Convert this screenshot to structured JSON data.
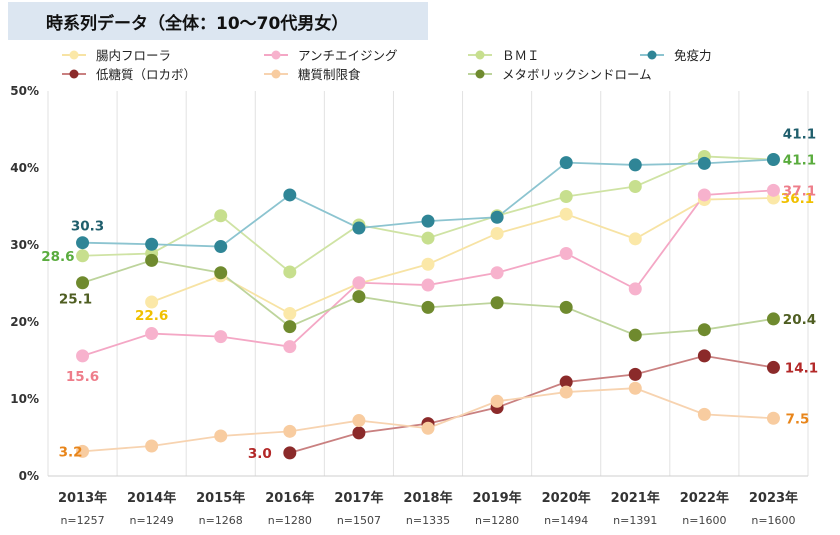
{
  "chart_data": {
    "type": "line",
    "title": "時系列データ（全体：10～70代男女）",
    "categories": [
      "2013年",
      "2014年",
      "2015年",
      "2016年",
      "2017年",
      "2018年",
      "2019年",
      "2020年",
      "2021年",
      "2022年",
      "2023年"
    ],
    "sample_sizes": [
      "n=1257",
      "n=1249",
      "n=1268",
      "n=1280",
      "n=1507",
      "n=1335",
      "n=1280",
      "n=1494",
      "n=1391",
      "n=1600",
      "n=1600"
    ],
    "y_ticks": [
      "0%",
      "10%",
      "20%",
      "30%",
      "40%",
      "50%"
    ],
    "ylim": [
      0,
      50
    ],
    "grid": "vertical",
    "legend_position": "top",
    "series": [
      {
        "name": "腸内フローラ",
        "line_color": "#f7e3a4",
        "marker_color": "#fbe8a8",
        "label_color": "#f0c000",
        "values": [
          null,
          22.6,
          26.0,
          21.1,
          25.0,
          27.5,
          31.5,
          34.0,
          30.8,
          35.9,
          36.1
        ],
        "labels": [
          {
            "index": 1,
            "text": "22.6"
          },
          {
            "index": 10,
            "text": "36.1"
          }
        ]
      },
      {
        "name": "アンチエイジング",
        "line_color": "#f4a7c5",
        "marker_color": "#f7b2cd",
        "label_color": "#ee7d8a",
        "values": [
          15.6,
          18.5,
          18.1,
          16.8,
          25.1,
          24.8,
          26.4,
          28.9,
          24.3,
          36.5,
          37.1
        ],
        "labels": [
          {
            "index": 0,
            "text": "15.6"
          },
          {
            "index": 10,
            "text": "37.1"
          }
        ]
      },
      {
        "name": "ＢＭＩ",
        "line_color": "#cfe3a4",
        "marker_color": "#c7df8e",
        "label_color": "#5aac3e",
        "values": [
          28.6,
          28.9,
          33.8,
          26.5,
          32.6,
          30.9,
          33.8,
          36.3,
          37.6,
          41.5,
          41.1
        ],
        "labels": [
          {
            "index": 0,
            "text": "28.6"
          },
          {
            "index": 10,
            "text": "41.1"
          }
        ]
      },
      {
        "name": "免疫力",
        "line_color": "#8cc4d0",
        "marker_color": "#2f8596",
        "label_color": "#1f5e6c",
        "values": [
          30.3,
          30.1,
          29.8,
          36.5,
          32.2,
          33.1,
          33.6,
          40.7,
          40.4,
          40.6,
          41.1
        ],
        "labels": [
          {
            "index": 0,
            "text": "30.3"
          },
          {
            "index": 10,
            "text": "41.1"
          }
        ]
      },
      {
        "name": "低糖質（ロカボ）",
        "line_color": "#c98080",
        "marker_color": "#8b2a2a",
        "label_color": "#b32828",
        "values": [
          null,
          null,
          null,
          3.0,
          5.6,
          6.8,
          8.9,
          12.2,
          13.2,
          15.6,
          14.1
        ],
        "labels": [
          {
            "index": 3,
            "text": "3.0"
          },
          {
            "index": 10,
            "text": "14.1"
          }
        ]
      },
      {
        "name": "糖質制限食",
        "line_color": "#f7d3b0",
        "marker_color": "#f8cca0",
        "label_color": "#e8851a",
        "values": [
          3.2,
          3.9,
          5.2,
          5.8,
          7.2,
          6.2,
          9.7,
          10.9,
          11.4,
          8.0,
          7.5
        ],
        "labels": [
          {
            "index": 0,
            "text": "3.2"
          },
          {
            "index": 10,
            "text": "7.5"
          }
        ]
      },
      {
        "name": "メタボリックシンドローム",
        "line_color": "#bdd49c",
        "marker_color": "#6f8a2e",
        "label_color": "#4f5e22",
        "values": [
          25.1,
          28.0,
          26.4,
          19.4,
          23.3,
          21.9,
          22.5,
          21.9,
          18.3,
          19.0,
          20.4
        ],
        "labels": [
          {
            "index": 0,
            "text": "25.1"
          },
          {
            "index": 10,
            "text": "20.4"
          }
        ]
      }
    ]
  }
}
